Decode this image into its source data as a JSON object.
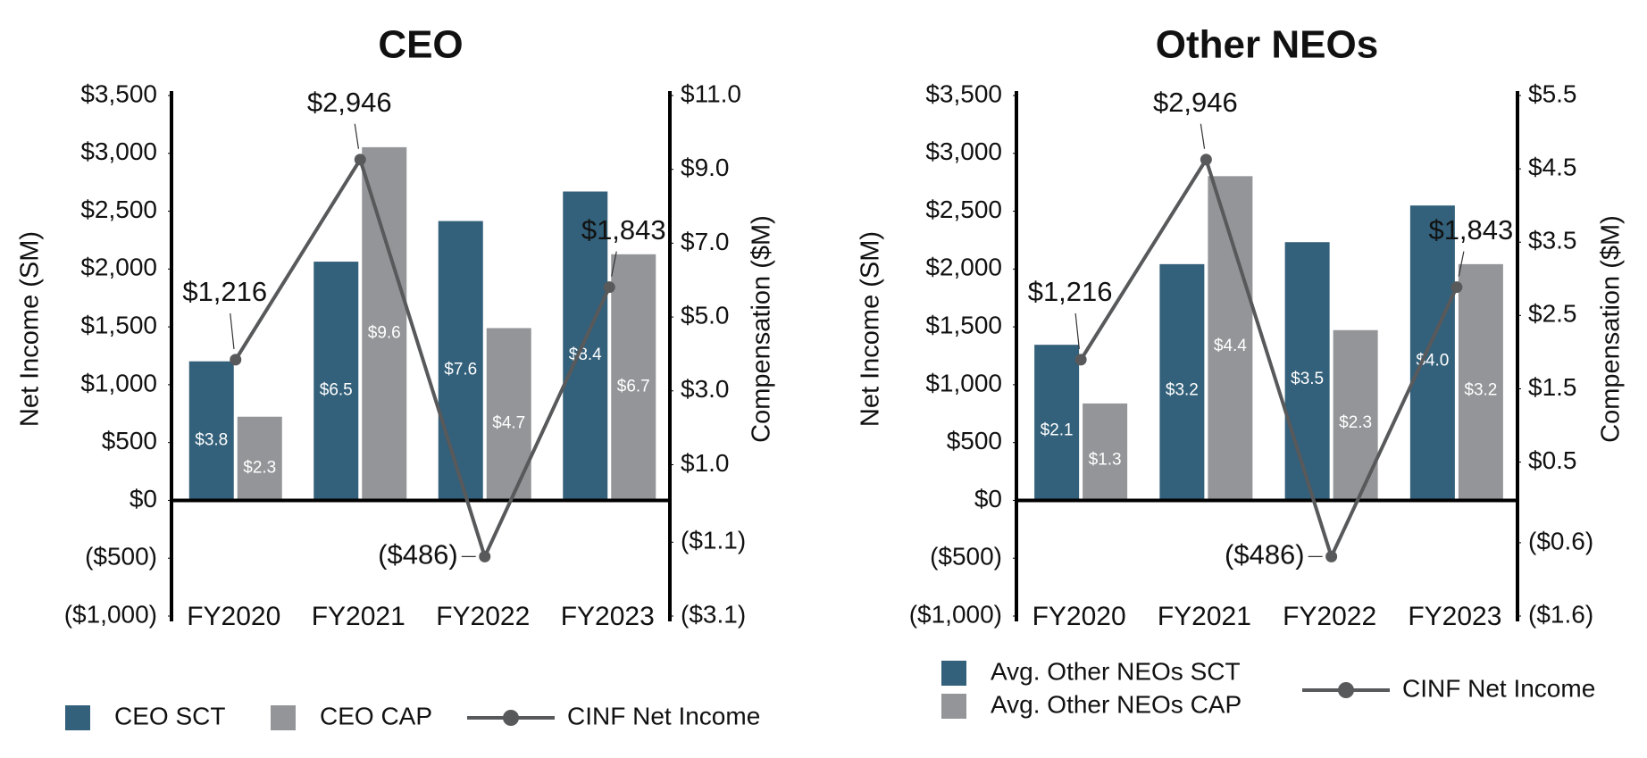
{
  "chart_data": [
    {
      "type": "combo",
      "title": "CEO",
      "ylabel": "Net Income (SM)",
      "y2label": "Compensation ($M)",
      "categories": [
        "FY2020",
        "FY2021",
        "FY2022",
        "FY2023"
      ],
      "ylim": [
        -1000,
        3500
      ],
      "yticks": [
        {
          "value": -1000,
          "label": "($1,000)"
        },
        {
          "value": -500,
          "label": "($500)"
        },
        {
          "value": 0,
          "label": "$0"
        },
        {
          "value": 500,
          "label": "$500"
        },
        {
          "value": 1000,
          "label": "$1,000"
        },
        {
          "value": 1500,
          "label": "$1,500"
        },
        {
          "value": 2000,
          "label": "$2,000"
        },
        {
          "value": 2500,
          "label": "$2,500"
        },
        {
          "value": 3000,
          "label": "$3,000"
        },
        {
          "value": 3500,
          "label": "$3,500"
        }
      ],
      "y2lim": [
        -3.1,
        11.0
      ],
      "y2ticks": [
        {
          "value": -3.1,
          "label": "($3.1)"
        },
        {
          "value": -1.1,
          "label": "($1.1)"
        },
        {
          "value": 1.0,
          "label": "$1.0"
        },
        {
          "value": 3.0,
          "label": "$3.0"
        },
        {
          "value": 5.0,
          "label": "$5.0"
        },
        {
          "value": 7.0,
          "label": "$7.0"
        },
        {
          "value": 9.0,
          "label": "$9.0"
        },
        {
          "value": 11.0,
          "label": "$11.0"
        }
      ],
      "series": [
        {
          "name": "CEO SCT",
          "type": "bar",
          "axis": "y2",
          "color": "#33607a",
          "values": [
            3.8,
            6.5,
            7.6,
            8.4
          ],
          "value_labels": [
            "$3.8",
            "$6.5",
            "$7.6",
            "$8.4"
          ]
        },
        {
          "name": "CEO CAP",
          "type": "bar",
          "axis": "y2",
          "color": "#939598",
          "values": [
            2.3,
            9.6,
            4.7,
            6.7
          ],
          "value_labels": [
            "$2.3",
            "$9.6",
            "$4.7",
            "$6.7"
          ]
        },
        {
          "name": "CINF Net Income",
          "type": "line",
          "color": "#58595b",
          "values": [
            1216,
            2946,
            -486,
            1843
          ],
          "value_labels": [
            "$1,216",
            "$2,946",
            "($486)",
            "$1,843"
          ]
        }
      ]
    },
    {
      "type": "combo",
      "title": "Other NEOs",
      "ylabel": "Net Income (SM)",
      "y2label": "Compensation ($M)",
      "categories": [
        "FY2020",
        "FY2021",
        "FY2022",
        "FY2023"
      ],
      "ylim": [
        -1000,
        3500
      ],
      "yticks": [
        {
          "value": -1000,
          "label": "($1,000)"
        },
        {
          "value": -500,
          "label": "($500)"
        },
        {
          "value": 0,
          "label": "$0"
        },
        {
          "value": 500,
          "label": "$500"
        },
        {
          "value": 1000,
          "label": "$1,000"
        },
        {
          "value": 1500,
          "label": "$1,500"
        },
        {
          "value": 2000,
          "label": "$2,000"
        },
        {
          "value": 2500,
          "label": "$2,500"
        },
        {
          "value": 3000,
          "label": "$3,000"
        },
        {
          "value": 3500,
          "label": "$3,500"
        }
      ],
      "y2lim": [
        -1.6,
        5.5
      ],
      "y2ticks": [
        {
          "value": -1.6,
          "label": "($1.6)"
        },
        {
          "value": -0.6,
          "label": "($0.6)"
        },
        {
          "value": 0.5,
          "label": "$0.5"
        },
        {
          "value": 1.5,
          "label": "$1.5"
        },
        {
          "value": 2.5,
          "label": "$2.5"
        },
        {
          "value": 3.5,
          "label": "$3.5"
        },
        {
          "value": 4.5,
          "label": "$4.5"
        },
        {
          "value": 5.5,
          "label": "$5.5"
        }
      ],
      "series": [
        {
          "name": "Avg. Other NEOs SCT",
          "type": "bar",
          "axis": "y2",
          "color": "#33607a",
          "values": [
            2.1,
            3.2,
            3.5,
            4.0
          ],
          "value_labels": [
            "$2.1",
            "$3.2",
            "$3.5",
            "$4.0"
          ]
        },
        {
          "name": "Avg. Other NEOs CAP",
          "type": "bar",
          "axis": "y2",
          "color": "#939598",
          "values": [
            1.3,
            4.4,
            2.3,
            3.2
          ],
          "value_labels": [
            "$1.3",
            "$4.4",
            "$2.3",
            "$3.2"
          ]
        },
        {
          "name": "CINF Net Income",
          "type": "line",
          "color": "#58595b",
          "values": [
            1216,
            2946,
            -486,
            1843
          ],
          "value_labels": [
            "$1,216",
            "$2,946",
            "($486)",
            "$1,843"
          ]
        }
      ]
    }
  ]
}
